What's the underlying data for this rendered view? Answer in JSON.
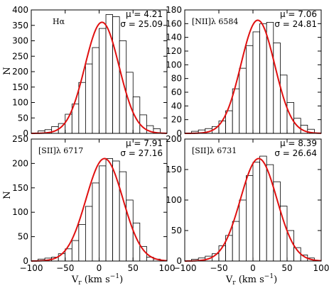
{
  "figure": {
    "ylabel": "N",
    "xlabel": "V_r (km s^-1)",
    "xlabel_main": "V",
    "xlabel_sub": "r",
    "xlabel_unit_open": " (km s",
    "xlabel_exp": "−1",
    "xlabel_close": ")"
  },
  "chart_data": [
    {
      "type": "bar",
      "panel": "Hα",
      "title": "Hα",
      "mu_label": "μ = 4.21",
      "sigma_label": "σ = 25.09",
      "fit": {
        "mu": 4.21,
        "sigma": 25.09,
        "amplitude": 360
      },
      "bin_edges": [
        -90,
        -80,
        -70,
        -60,
        -50,
        -40,
        -30,
        -20,
        -10,
        0,
        10,
        20,
        30,
        40,
        50,
        60,
        70,
        80,
        90
      ],
      "values": [
        8,
        12,
        22,
        32,
        62,
        95,
        165,
        225,
        278,
        340,
        385,
        378,
        300,
        198,
        118,
        60,
        25,
        15
      ],
      "xlim": [
        -100,
        100
      ],
      "ylim": [
        0,
        400
      ],
      "yticks": [
        0,
        50,
        100,
        150,
        200,
        250,
        300,
        350,
        400
      ],
      "xticks": []
    },
    {
      "type": "bar",
      "panel": "[NII]λ 6584",
      "title": "[NII]λ 6584",
      "mu_label": "μ = 7.06",
      "sigma_label": "σ = 24.81",
      "fit": {
        "mu": 7.06,
        "sigma": 24.81,
        "amplitude": 165
      },
      "bin_edges": [
        -90,
        -80,
        -70,
        -60,
        -50,
        -40,
        -30,
        -20,
        -10,
        0,
        10,
        20,
        30,
        40,
        50,
        60,
        70,
        80,
        90
      ],
      "values": [
        3,
        5,
        7,
        10,
        18,
        33,
        65,
        95,
        128,
        148,
        160,
        162,
        132,
        85,
        45,
        22,
        12,
        6
      ],
      "xlim": [
        -100,
        100
      ],
      "ylim": [
        0,
        180
      ],
      "yticks": [
        0,
        20,
        40,
        60,
        80,
        100,
        120,
        140,
        160,
        180
      ],
      "xticks": []
    },
    {
      "type": "bar",
      "panel": "[SII]λ 6717",
      "title": "[SII]λ 6717",
      "mu_label": "μ = 7.91",
      "sigma_label": "σ = 27.16",
      "fit": {
        "mu": 7.91,
        "sigma": 27.16,
        "amplitude": 210
      },
      "bin_edges": [
        -90,
        -80,
        -70,
        -60,
        -50,
        -40,
        -30,
        -20,
        -10,
        0,
        10,
        20,
        30,
        40,
        50,
        60,
        70,
        80,
        90
      ],
      "values": [
        4,
        6,
        8,
        15,
        25,
        42,
        75,
        112,
        160,
        195,
        210,
        205,
        183,
        125,
        78,
        30,
        8,
        4
      ],
      "xlim": [
        -100,
        100
      ],
      "ylim": [
        0,
        250
      ],
      "yticks": [
        0,
        50,
        100,
        150,
        200,
        250
      ],
      "xticks": [
        -100,
        -50,
        0,
        50,
        100
      ]
    },
    {
      "type": "bar",
      "panel": "[SII]λ 6731",
      "title": "[SII]λ 6731",
      "mu_label": "μ = 8.39",
      "sigma_label": "σ = 26.64",
      "fit": {
        "mu": 8.39,
        "sigma": 26.64,
        "amplitude": 168
      },
      "bin_edges": [
        -90,
        -80,
        -70,
        -60,
        -50,
        -40,
        -30,
        -20,
        -10,
        0,
        10,
        20,
        30,
        40,
        50,
        60,
        70,
        80,
        90
      ],
      "values": [
        3,
        5,
        8,
        12,
        25,
        42,
        65,
        100,
        140,
        162,
        172,
        158,
        130,
        90,
        50,
        22,
        10,
        5
      ],
      "xlim": [
        -100,
        100
      ],
      "ylim": [
        0,
        200
      ],
      "yticks": [
        0,
        50,
        100,
        150,
        200
      ],
      "xticks": [
        -100,
        -50,
        0,
        50,
        100
      ]
    }
  ],
  "colors": {
    "fit_line": "#e01010",
    "bar_edge": "#000000",
    "bar_fill": "#ffffff"
  }
}
